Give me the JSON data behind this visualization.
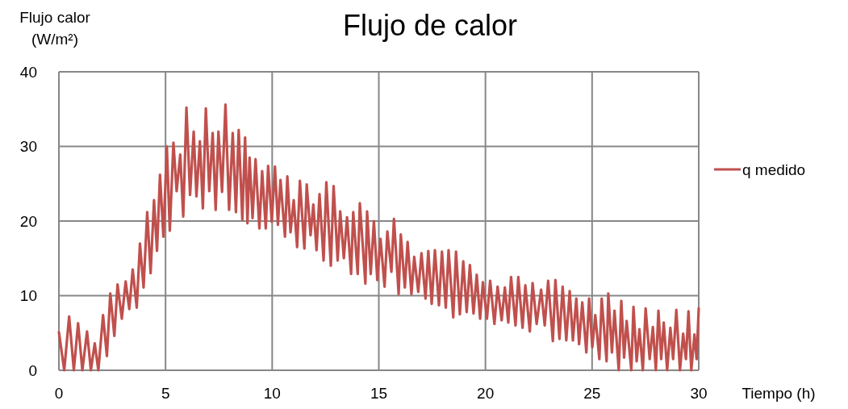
{
  "chart_data": {
    "type": "line",
    "title": "Flujo de calor",
    "xlabel": "Tiempo (h)",
    "ylabel": "Flujo calor (W/m²)",
    "xlim": [
      0,
      30
    ],
    "xticks": [
      0,
      5,
      10,
      15,
      20,
      25,
      30
    ],
    "ylim": [
      0,
      40
    ],
    "yticks": [
      0,
      10,
      20,
      30,
      40
    ],
    "grid": true,
    "legend": "right",
    "marker": "none",
    "line_style": "solid",
    "x": [
      0,
      0.25,
      0.48,
      0.7,
      0.9,
      1.1,
      1.32,
      1.5,
      1.68,
      1.85,
      2.07,
      2.25,
      2.41,
      2.6,
      2.75,
      2.95,
      3.13,
      3.3,
      3.46,
      3.65,
      3.8,
      3.97,
      4.14,
      4.3,
      4.46,
      4.6,
      4.74,
      4.9,
      5.06,
      5.2,
      5.37,
      5.52,
      5.69,
      5.83,
      5.98,
      6.15,
      6.32,
      6.45,
      6.61,
      6.75,
      6.89,
      7.05,
      7.21,
      7.35,
      7.48,
      7.65,
      7.81,
      7.98,
      8.15,
      8.3,
      8.43,
      8.6,
      8.73,
      8.84,
      8.94,
      9.08,
      9.22,
      9.4,
      9.53,
      9.7,
      9.81,
      9.98,
      10.13,
      10.27,
      10.39,
      10.6,
      10.71,
      10.86,
      11.01,
      11.17,
      11.3,
      11.51,
      11.62,
      11.8,
      11.93,
      12.08,
      12.22,
      12.41,
      12.54,
      12.75,
      12.88,
      13.07,
      13.19,
      13.36,
      13.51,
      13.7,
      13.8,
      14.01,
      14.11,
      14.37,
      14.45,
      14.62,
      14.77,
      14.93,
      15.08,
      15.27,
      15.4,
      15.59,
      15.71,
      15.93,
      16.03,
      16.22,
      16.35,
      16.53,
      16.66,
      16.85,
      17,
      17.19,
      17.32,
      17.48,
      17.63,
      17.82,
      17.96,
      18.14,
      18.27,
      18.49,
      18.62,
      18.8,
      18.96,
      19.12,
      19.27,
      19.44,
      19.59,
      19.75,
      19.88,
      20.07,
      20.22,
      20.42,
      20.57,
      20.76,
      20.91,
      21.07,
      21.2,
      21.41,
      21.54,
      21.74,
      21.87,
      22.08,
      22.21,
      22.4,
      22.61,
      22.78,
      22.94,
      23.16,
      23.28,
      23.47,
      23.62,
      23.79,
      23.95,
      24.1,
      24.26,
      24.39,
      24.54,
      24.73,
      24.86,
      25.01,
      25.15,
      25.34,
      25.45,
      25.68,
      25.76,
      25.93,
      26.05,
      26.25,
      26.37,
      26.5,
      26.62,
      26.84,
      26.94,
      27.09,
      27.22,
      27.38,
      27.51,
      27.7,
      27.85,
      27.99,
      28.11,
      28.24,
      28.36,
      28.52,
      28.67,
      28.8,
      28.95,
      29.12,
      29.27,
      29.4,
      29.52,
      29.65,
      29.8,
      29.9,
      30
    ],
    "series": [
      {
        "name": "q medido",
        "color": "#c0504d",
        "values": [
          5.1,
          0,
          7.2,
          0,
          6.3,
          0,
          5.2,
          0,
          3.6,
          0,
          7.4,
          1.9,
          10.3,
          4.6,
          11.5,
          6.9,
          11.9,
          8.2,
          13.5,
          8.4,
          17,
          11.1,
          21.2,
          13,
          22.8,
          16,
          26.2,
          17.9,
          30,
          18.7,
          30.5,
          24,
          28.9,
          20.6,
          35.2,
          23.5,
          32,
          23.3,
          30.7,
          21.7,
          35.1,
          24,
          31.8,
          21.5,
          32,
          23.9,
          35.6,
          21.5,
          31.8,
          21.2,
          32.2,
          20.2,
          31.2,
          19.7,
          28.5,
          20.4,
          28.3,
          19,
          26.7,
          19,
          27.4,
          19.9,
          27.3,
          19.5,
          25.5,
          17.9,
          26,
          18.5,
          22.8,
          16.5,
          25.4,
          16.3,
          24.9,
          18.1,
          22.2,
          16.1,
          23.6,
          14.7,
          25.2,
          14,
          24.7,
          14.7,
          21.3,
          15,
          20.5,
          12.9,
          21.2,
          12.9,
          22.4,
          11.6,
          21.3,
          12.9,
          20,
          12.1,
          17.6,
          11.2,
          18.6,
          13.2,
          20.3,
          10.2,
          18.2,
          11.1,
          17.2,
          10.2,
          15.2,
          10.5,
          15.7,
          9.6,
          16,
          8.9,
          16.1,
          8.7,
          15.9,
          8.4,
          16.1,
          7.1,
          15.9,
          7.5,
          14.6,
          7.8,
          14.1,
          7.6,
          12.8,
          6.9,
          11.8,
          6.9,
          12,
          6.2,
          11.2,
          6.7,
          11.1,
          6.4,
          12.5,
          6,
          12.5,
          5.7,
          11.4,
          5.2,
          11.7,
          6.2,
          10.8,
          6,
          12,
          3.9,
          12.1,
          4.2,
          11.2,
          4,
          10.6,
          4,
          9.6,
          3.5,
          9.1,
          2.4,
          9.6,
          3.1,
          7.4,
          1.5,
          9.6,
          1.2,
          10.3,
          2.4,
          8,
          0,
          9.3,
          1.7,
          6.6,
          0,
          8.5,
          1.2,
          5.5,
          0,
          8.3,
          1.5,
          5.8,
          0,
          8,
          1.5,
          6.4,
          0,
          5.7,
          1.5,
          8.1,
          0,
          4.9,
          1.5,
          7.9,
          0,
          4.8,
          1.5,
          8.3
        ]
      }
    ]
  }
}
